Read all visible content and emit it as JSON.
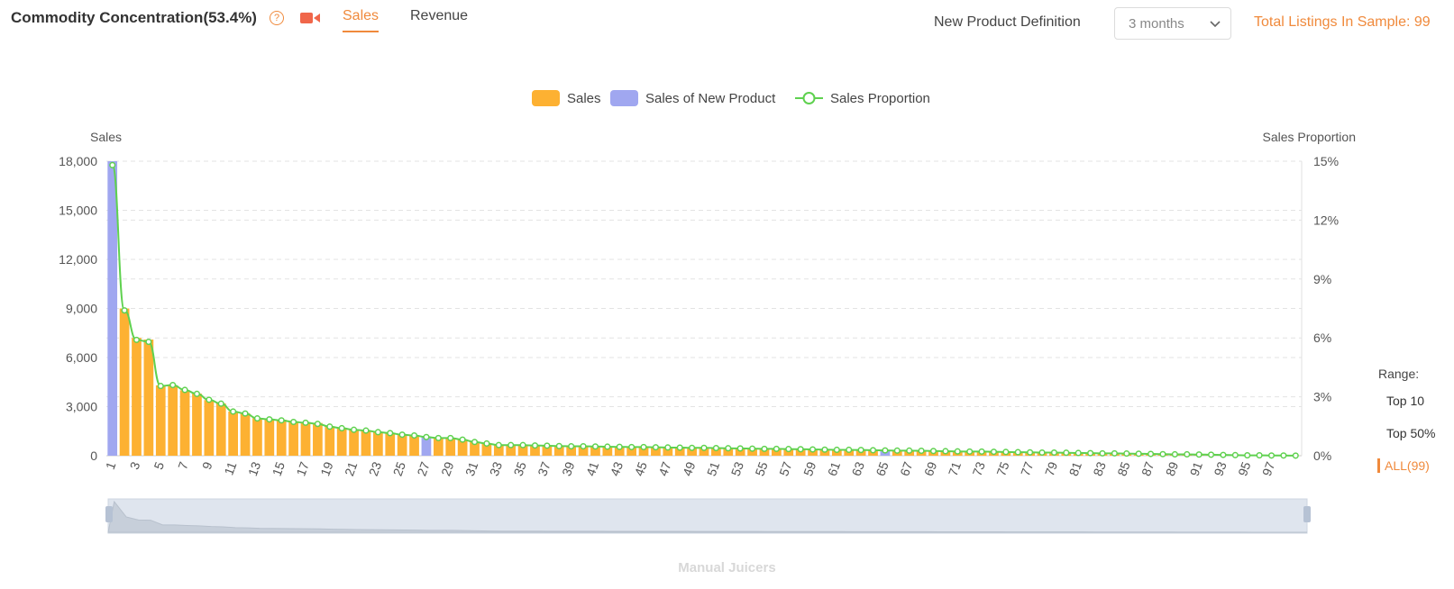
{
  "header": {
    "title": "Commodity Concentration(53.4%)",
    "tabs": [
      {
        "label": "Sales",
        "active": true
      },
      {
        "label": "Revenue",
        "active": false
      }
    ],
    "new_product_label": "New Product Definition",
    "new_product_value": "3 months",
    "total_listings": "Total Listings In Sample: 99",
    "help_icon": "question-circle-icon",
    "video_icon": "video-camera-icon",
    "accent_color": "#f08a3c"
  },
  "range": {
    "title": "Range:",
    "options": [
      "Top 10",
      "Top 50%",
      "ALL(99)"
    ],
    "active": "ALL(99)"
  },
  "subtitle": "Manual Juicers",
  "chart_data": {
    "type": "bar",
    "title": "",
    "ylabel": "Sales",
    "y2label": "Sales Proportion",
    "ylim": [
      0,
      18000
    ],
    "y2lim": [
      0,
      15
    ],
    "yticks": [
      "0",
      "3,000",
      "6,000",
      "9,000",
      "12,000",
      "15,000",
      "18,000"
    ],
    "y2ticks": [
      "0%",
      "3%",
      "6%",
      "9%",
      "12%",
      "15%"
    ],
    "grid": true,
    "legend_position": "top-center",
    "colors": {
      "sales": "#fdb132",
      "new_product": "#a0a7f0",
      "proportion": "#5fd14f"
    },
    "legend": [
      "Sales",
      "Sales of New Product",
      "Sales Proportion"
    ],
    "x_tick_labels": [
      "1",
      "3",
      "5",
      "7",
      "9",
      "11",
      "13",
      "15",
      "17",
      "19",
      "21",
      "23",
      "25",
      "27",
      "29",
      "31",
      "33",
      "35",
      "37",
      "39",
      "41",
      "43",
      "45",
      "47",
      "49",
      "51",
      "53",
      "55",
      "57",
      "59",
      "61",
      "63",
      "65",
      "67",
      "69",
      "71",
      "73",
      "75",
      "77",
      "79",
      "81",
      "83",
      "85",
      "87",
      "89",
      "91",
      "93",
      "95",
      "97"
    ],
    "categories": [
      1,
      2,
      3,
      4,
      5,
      6,
      7,
      8,
      9,
      10,
      11,
      12,
      13,
      14,
      15,
      16,
      17,
      18,
      19,
      20,
      21,
      22,
      23,
      24,
      25,
      26,
      27,
      28,
      29,
      30,
      31,
      32,
      33,
      34,
      35,
      36,
      37,
      38,
      39,
      40,
      41,
      42,
      43,
      44,
      45,
      46,
      47,
      48,
      49,
      50,
      51,
      52,
      53,
      54,
      55,
      56,
      57,
      58,
      59,
      60,
      61,
      62,
      63,
      64,
      65,
      66,
      67,
      68,
      69,
      70,
      71,
      72,
      73,
      74,
      75,
      76,
      77,
      78,
      79,
      80,
      81,
      82,
      83,
      84,
      85,
      86,
      87,
      88,
      89,
      90,
      91,
      92,
      93,
      94,
      95,
      96,
      97,
      98,
      99
    ],
    "new_product_ranks": [
      1,
      27,
      65
    ],
    "series": [
      {
        "name": "Sales",
        "values": [
          18000,
          9000,
          7200,
          7100,
          4300,
          4300,
          4000,
          3800,
          3400,
          3200,
          2700,
          2600,
          2300,
          2250,
          2200,
          2100,
          2050,
          2000,
          1800,
          1700,
          1600,
          1550,
          1450,
          1400,
          1300,
          1250,
          1150,
          1100,
          1100,
          1000,
          850,
          750,
          650,
          650,
          650,
          630,
          620,
          600,
          590,
          580,
          570,
          560,
          550,
          540,
          530,
          520,
          510,
          500,
          490,
          480,
          470,
          460,
          450,
          440,
          430,
          420,
          410,
          400,
          390,
          380,
          370,
          360,
          350,
          340,
          330,
          320,
          310,
          300,
          290,
          280,
          270,
          260,
          250,
          240,
          230,
          220,
          210,
          200,
          190,
          180,
          170,
          160,
          150,
          140,
          130,
          120,
          110,
          100,
          90,
          80,
          70,
          60,
          50,
          40,
          30,
          20,
          15,
          10,
          5
        ]
      },
      {
        "name": "Sales Proportion",
        "values": [
          14.8,
          7.4,
          5.9,
          5.8,
          3.55,
          3.6,
          3.35,
          3.15,
          2.85,
          2.65,
          2.25,
          2.15,
          1.9,
          1.85,
          1.8,
          1.72,
          1.68,
          1.62,
          1.48,
          1.4,
          1.32,
          1.28,
          1.2,
          1.15,
          1.07,
          1.03,
          0.95,
          0.9,
          0.9,
          0.82,
          0.7,
          0.62,
          0.54,
          0.54,
          0.54,
          0.52,
          0.51,
          0.49,
          0.48,
          0.48,
          0.47,
          0.46,
          0.45,
          0.44,
          0.44,
          0.43,
          0.42,
          0.41,
          0.4,
          0.4,
          0.39,
          0.38,
          0.37,
          0.36,
          0.35,
          0.35,
          0.34,
          0.33,
          0.32,
          0.31,
          0.3,
          0.3,
          0.29,
          0.28,
          0.27,
          0.26,
          0.26,
          0.25,
          0.24,
          0.23,
          0.22,
          0.21,
          0.21,
          0.2,
          0.19,
          0.18,
          0.17,
          0.16,
          0.16,
          0.15,
          0.14,
          0.13,
          0.12,
          0.12,
          0.11,
          0.1,
          0.09,
          0.08,
          0.07,
          0.07,
          0.06,
          0.05,
          0.04,
          0.03,
          0.02,
          0.02,
          0.01,
          0.01,
          0.004
        ]
      }
    ]
  }
}
